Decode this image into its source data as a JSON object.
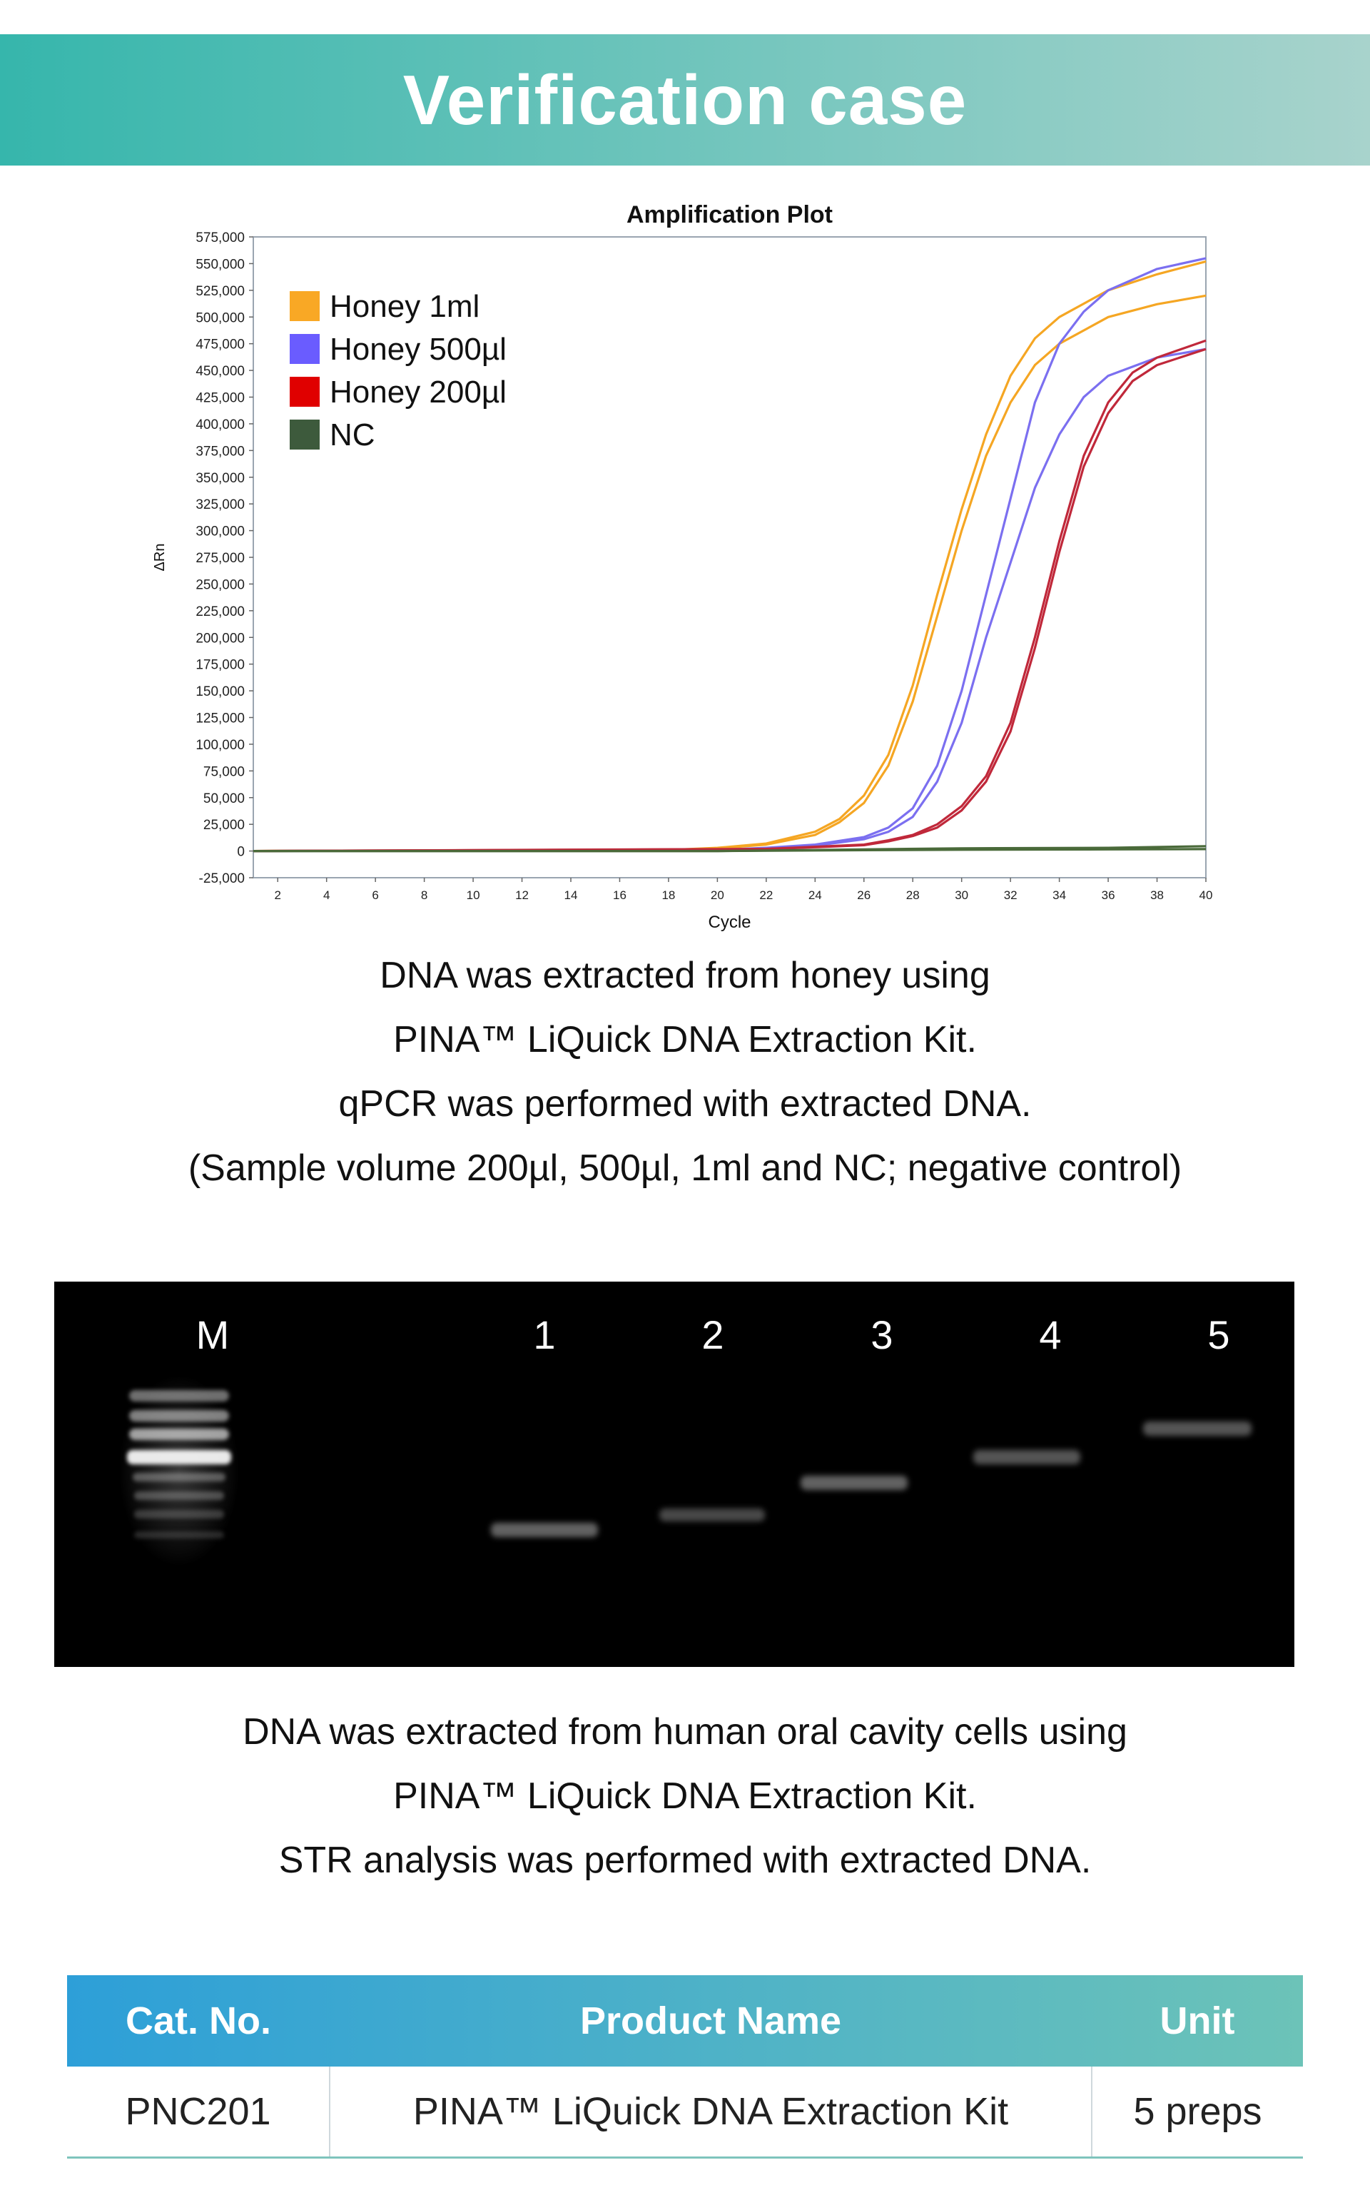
{
  "header": {
    "title": "Verification case"
  },
  "chart_data": {
    "type": "line",
    "title": "Amplification Plot",
    "xlabel": "Cycle",
    "ylabel": "ΔRn",
    "xlim": [
      1,
      40
    ],
    "ylim": [
      -25000,
      575000
    ],
    "xticks": [
      2,
      4,
      6,
      8,
      10,
      12,
      14,
      16,
      18,
      20,
      22,
      24,
      26,
      28,
      30,
      32,
      34,
      36,
      38,
      40
    ],
    "yticks": [
      -25000,
      0,
      25000,
      50000,
      75000,
      100000,
      125000,
      150000,
      175000,
      200000,
      225000,
      250000,
      275000,
      300000,
      325000,
      350000,
      375000,
      400000,
      425000,
      450000,
      475000,
      500000,
      525000,
      550000,
      575000
    ],
    "ytick_labels": [
      "-25,000",
      "0",
      "25,000",
      "50,000",
      "75,000",
      "100,000",
      "125,000",
      "150,000",
      "175,000",
      "200,000",
      "225,000",
      "250,000",
      "275,000",
      "300,000",
      "325,000",
      "350,000",
      "375,000",
      "400,000",
      "425,000",
      "450,000",
      "475,000",
      "500,000",
      "525,000",
      "550,000",
      "575,000"
    ],
    "grid": false,
    "legend_position": "top-left",
    "series": [
      {
        "name": "Honey 1ml",
        "color": "#f5a623",
        "legend_color": "#f9a825",
        "curves": [
          {
            "x": [
              1,
              18,
              20,
              22,
              24,
              25,
              26,
              27,
              28,
              29,
              30,
              31,
              32,
              33,
              34,
              36,
              38,
              40
            ],
            "y": [
              0,
              1000,
              3000,
              7000,
              18000,
              30000,
              52000,
              90000,
              155000,
              240000,
              320000,
              390000,
              445000,
              480000,
              500000,
              525000,
              540000,
              552000
            ]
          },
          {
            "x": [
              1,
              18,
              20,
              22,
              24,
              25,
              26,
              27,
              28,
              29,
              30,
              31,
              32,
              33,
              34,
              36,
              38,
              40
            ],
            "y": [
              0,
              1000,
              2500,
              6000,
              15000,
              27000,
              45000,
              80000,
              140000,
              220000,
              300000,
              370000,
              420000,
              455000,
              475000,
              500000,
              512000,
              520000
            ]
          }
        ]
      },
      {
        "name": "Honey 500µl",
        "color": "#7b6ff0",
        "legend_color": "#6a5cff",
        "curves": [
          {
            "x": [
              1,
              20,
              22,
              24,
              26,
              27,
              28,
              29,
              30,
              31,
              32,
              33,
              34,
              35,
              36,
              38,
              40
            ],
            "y": [
              0,
              1000,
              3000,
              6000,
              13000,
              22000,
              40000,
              80000,
              150000,
              240000,
              330000,
              420000,
              475000,
              505000,
              525000,
              545000,
              555000
            ]
          },
          {
            "x": [
              1,
              20,
              22,
              24,
              26,
              27,
              28,
              29,
              30,
              31,
              32,
              33,
              34,
              35,
              36,
              38,
              40
            ],
            "y": [
              0,
              800,
              2500,
              5000,
              11000,
              18000,
              32000,
              65000,
              120000,
              200000,
              270000,
              340000,
              390000,
              425000,
              445000,
              462000,
              470000
            ]
          }
        ]
      },
      {
        "name": "Honey 200µl",
        "color": "#c0283a",
        "legend_color": "#e00000",
        "curves": [
          {
            "x": [
              1,
              22,
              24,
              26,
              27,
              28,
              29,
              30,
              31,
              32,
              33,
              34,
              35,
              36,
              37,
              38,
              40
            ],
            "y": [
              0,
              2000,
              4000,
              6000,
              10000,
              15000,
              25000,
              42000,
              70000,
              120000,
              200000,
              290000,
              370000,
              420000,
              448000,
              462000,
              478000
            ]
          },
          {
            "x": [
              1,
              22,
              24,
              26,
              27,
              28,
              29,
              30,
              31,
              32,
              33,
              34,
              35,
              36,
              37,
              38,
              40
            ],
            "y": [
              0,
              1800,
              3500,
              5500,
              9000,
              14000,
              22000,
              38000,
              65000,
              112000,
              190000,
              280000,
              360000,
              410000,
              440000,
              455000,
              470000
            ]
          }
        ]
      },
      {
        "name": "NC",
        "color": "#4a6a3a",
        "legend_color": "#3d5a3c",
        "curves": [
          {
            "x": [
              1,
              10,
              20,
              26,
              30,
              36,
              40
            ],
            "y": [
              0,
              0,
              0,
              1500,
              2500,
              3000,
              4500
            ]
          },
          {
            "x": [
              1,
              10,
              20,
              26,
              30,
              36,
              40
            ],
            "y": [
              0,
              0,
              0,
              800,
              1200,
              1500,
              1800
            ]
          }
        ]
      }
    ]
  },
  "caption1": {
    "lines": [
      "DNA was extracted from honey using",
      "PINA™ LiQuick DNA Extraction Kit.",
      "qPCR was performed with extracted DNA.",
      "(Sample volume 200µl, 500µl, 1ml and NC; negative control)"
    ]
  },
  "gel": {
    "lanes": [
      "M",
      "1",
      "2",
      "3",
      "4",
      "5"
    ]
  },
  "caption2": {
    "lines": [
      "DNA was extracted from human oral cavity cells using",
      "PINA™ LiQuick DNA Extraction Kit.",
      "STR analysis was performed with extracted DNA."
    ]
  },
  "table": {
    "headers": [
      "Cat. No.",
      "Product Name",
      "Unit"
    ],
    "rows": [
      [
        "PNC201",
        "PINA™ LiQuick DNA Extraction Kit",
        "5 preps"
      ]
    ]
  },
  "colors": {
    "banner_start": "#36b6ac",
    "banner_end": "#a8d3cc",
    "table_header_start": "#2d9fd8",
    "table_header_end": "#6cc3b8"
  }
}
